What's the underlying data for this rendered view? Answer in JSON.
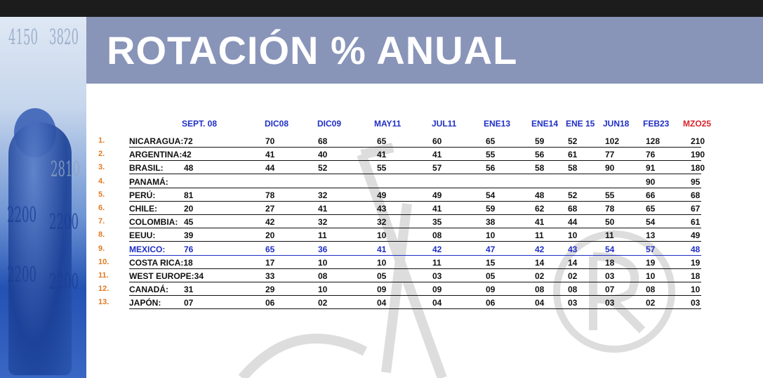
{
  "title": "ROTACIÓN % ANUAL",
  "side_numbers": [
    "4150",
    "3820",
    "2810",
    "2200",
    "2200",
    "2200",
    "2200"
  ],
  "colors": {
    "header_blue": "#1f2fc4",
    "header_red": "#d8232a",
    "index_orange": "#e07a22",
    "title_bar": "#8894b8"
  },
  "table": {
    "columns": [
      "SEPT. 08",
      "DIC08",
      "DIC09",
      "MAY11",
      "JUL11",
      "ENE13",
      "ENE14",
      "ENE 15",
      "JUN18",
      "FEB23",
      "MZO25"
    ],
    "rows": [
      {
        "index": "1.",
        "country": "NICARAGUA:72",
        "first": "",
        "values": [
          "70",
          "68",
          "65",
          "60",
          "65",
          "59",
          "52",
          "102",
          "128",
          "210"
        ]
      },
      {
        "index": "2.",
        "country": "ARGENTINA:42",
        "first": "",
        "values": [
          "41",
          "40",
          "41",
          "41",
          "55",
          "56",
          "61",
          "77",
          "76",
          "190"
        ]
      },
      {
        "index": "3.",
        "country": "BRASIL:",
        "first": "48",
        "values": [
          "44",
          "52",
          "55",
          "57",
          "56",
          "58",
          "58",
          "90",
          "91",
          "180"
        ]
      },
      {
        "index": "4.",
        "country": "PANAMÁ:",
        "first": "",
        "values": [
          "",
          "",
          "",
          "",
          "",
          "",
          "",
          "",
          "90",
          "95"
        ]
      },
      {
        "index": "5.",
        "country": "PERÚ:",
        "first": "81",
        "values": [
          "78",
          "32",
          "49",
          "49",
          "54",
          "48",
          "52",
          "55",
          "66",
          "68"
        ]
      },
      {
        "index": "6.",
        "country": "CHILE:",
        "first": "20",
        "values": [
          "27",
          "41",
          "43",
          "41",
          "59",
          "62",
          "68",
          "78",
          "65",
          "67"
        ]
      },
      {
        "index": "7.",
        "country": "COLOMBIA:",
        "first": "45",
        "values": [
          "42",
          "32",
          "32",
          "35",
          "38",
          "41",
          "44",
          "50",
          "54",
          "61"
        ]
      },
      {
        "index": "8.",
        "country": "EEUU:",
        "first": "39",
        "values": [
          "20",
          "11",
          "10",
          "08",
          "10",
          "11",
          "10",
          "11",
          "13",
          "49"
        ]
      },
      {
        "index": "9.",
        "country": "MEXICO:",
        "first": "76",
        "values": [
          "65",
          "36",
          "41",
          "42",
          "47",
          "42",
          "43",
          "54",
          "57",
          "48"
        ]
      },
      {
        "index": "10.",
        "country": "COSTA RICA:18",
        "first": "",
        "values": [
          "17",
          "10",
          "10",
          "11",
          "15",
          "14",
          "14",
          "18",
          "19",
          "19"
        ]
      },
      {
        "index": "11.",
        "country": "WEST EUROPE:34",
        "first": "",
        "values": [
          "33",
          "08",
          "05",
          "03",
          "05",
          "02",
          "02",
          "03",
          "10",
          "18"
        ]
      },
      {
        "index": "12.",
        "country": "CANADÁ:",
        "first": "31",
        "values": [
          "29",
          "10",
          "09",
          "09",
          "09",
          "08",
          "08",
          "07",
          "08",
          "10"
        ]
      },
      {
        "index": "13.",
        "country": "JAPÓN:",
        "first": "07",
        "values": [
          "06",
          "02",
          "04",
          "04",
          "06",
          "04",
          "03",
          "03",
          "02",
          "03"
        ]
      }
    ]
  }
}
